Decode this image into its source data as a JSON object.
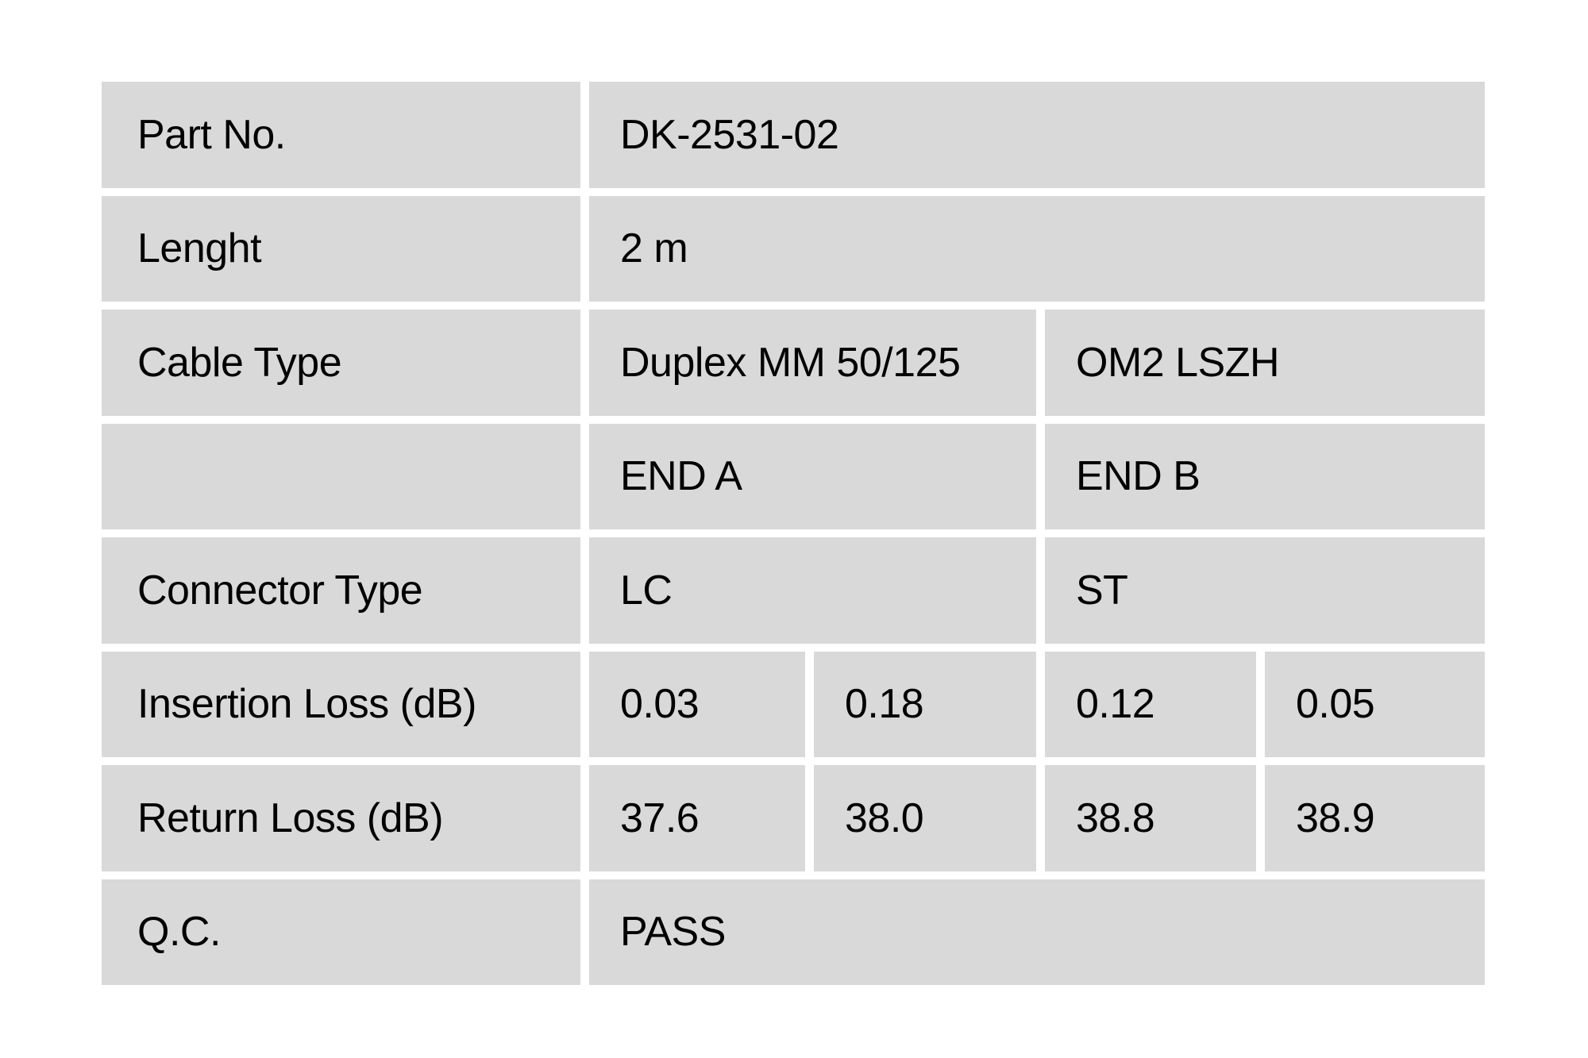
{
  "page": {
    "background_color": "#ffffff",
    "cell_background_color": "#d9d9d9",
    "text_color": "#000000"
  },
  "spec_table": {
    "part_no": {
      "label": "Part No.",
      "value": "DK-2531-02"
    },
    "length": {
      "label": "Lenght",
      "value": "2 m"
    },
    "cable_type": {
      "label": "Cable Type",
      "value_a": "Duplex MM 50/125",
      "value_b": "OM2 LSZH"
    },
    "ends": {
      "end_a": "END A",
      "end_b": "END B"
    },
    "connector_type": {
      "label": "Connector Type",
      "end_a": "LC",
      "end_b": "ST"
    },
    "insertion_loss": {
      "label": "Insertion Loss (dB)",
      "values": [
        "0.03",
        "0.18",
        "0.12",
        "0.05"
      ]
    },
    "return_loss": {
      "label": "Return Loss (dB)",
      "values": [
        "37.6",
        "38.0",
        "38.8",
        "38.9"
      ]
    },
    "qc": {
      "label": "Q.C.",
      "value": "PASS"
    }
  }
}
